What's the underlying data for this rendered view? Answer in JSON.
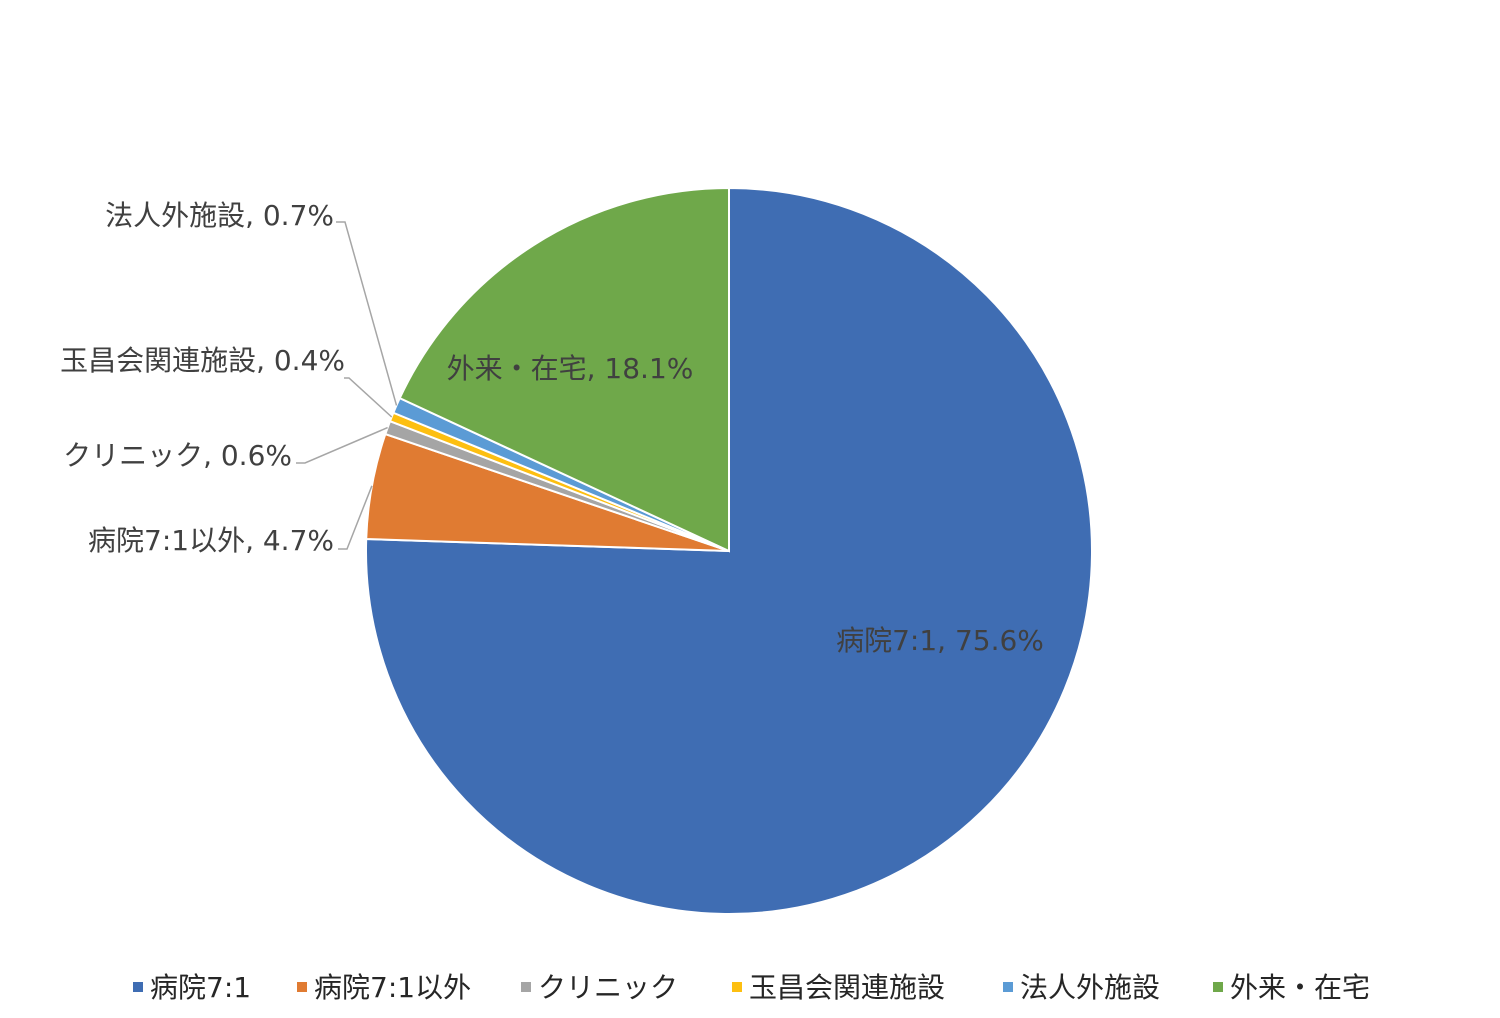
{
  "chart_data": {
    "type": "pie",
    "title": "",
    "categories": [
      "病院7:1",
      "病院7:1以外",
      "クリニック",
      "玉昌会関連施設",
      "法人外施設",
      "外来・在宅"
    ],
    "values": [
      75.6,
      4.7,
      0.6,
      0.4,
      0.7,
      18.1
    ],
    "unit": "%",
    "colors": [
      "#3f6db3",
      "#e07b32",
      "#a5a5a5",
      "#fdbf11",
      "#5b9bd5",
      "#6fa84a"
    ],
    "data_labels": [
      "病院7:1, 75.6%",
      "病院7:1以外, 4.7%",
      "クリニック, 0.6%",
      "玉昌会関連施設, 0.4%",
      "法人外施設, 0.7%",
      "外来・在宅, 18.1%"
    ],
    "legend": {
      "position": "bottom",
      "items": [
        "病院7:1",
        "病院7:1以外",
        "クリニック",
        "玉昌会関連施設",
        "法人外施設",
        "外来・在宅"
      ]
    }
  }
}
